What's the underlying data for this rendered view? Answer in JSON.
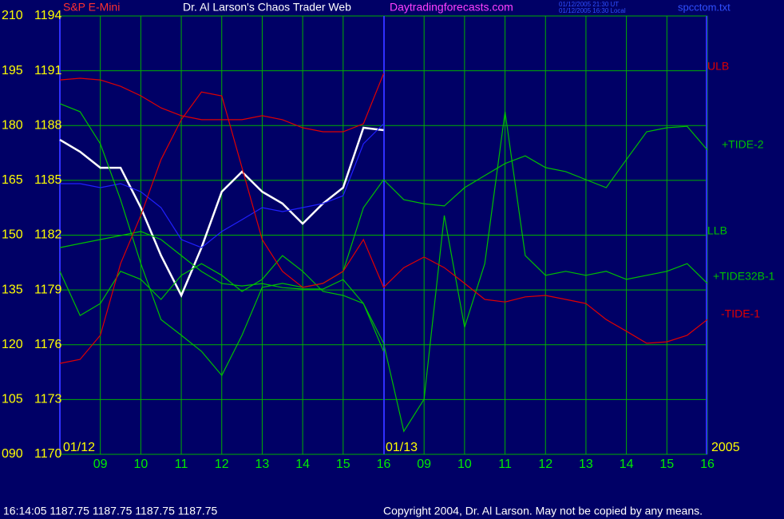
{
  "chart_data": {
    "type": "line",
    "instrument": "S&P E-Mini",
    "title": "Dr. Al Larson's Chaos Trader Web",
    "website": "Daytradingforecasts.com",
    "timestamps": [
      "01/12/2005 21:30 UT",
      "01/12/2005 16:30 Local"
    ],
    "file": "spcctom.txt",
    "dates": [
      "01/12",
      "01/13"
    ],
    "year": "2005",
    "status": "16:14:05  1187.75 1187.75 1187.75 1187.75",
    "copyright": "Copyright 2004, Dr. Al Larson. May not be copied by any means.",
    "grid": true,
    "grid_color": "#00b000",
    "x": [
      8,
      8.5,
      9,
      9.5,
      10,
      10.5,
      11,
      11.5,
      12,
      12.5,
      13,
      13.5,
      14,
      14.5,
      15,
      15.5,
      16,
      16.5,
      17,
      17.5,
      18,
      18.5,
      19,
      19.5,
      20,
      20.5,
      21,
      21.5,
      22,
      22.5,
      23,
      23.5,
      24
    ],
    "xlim": [
      8,
      24
    ],
    "xticks": [
      {
        "value": 9,
        "label": "09"
      },
      10,
      11,
      12,
      13,
      14,
      15,
      16,
      {
        "value": 17,
        "label": "09"
      },
      {
        "value": 18,
        "label": "10"
      },
      {
        "value": 19,
        "label": "11"
      },
      {
        "value": 20,
        "label": "12"
      },
      {
        "value": 21,
        "label": "13"
      },
      {
        "value": 22,
        "label": "14"
      },
      {
        "value": 23,
        "label": "15"
      },
      {
        "value": 24,
        "label": "16"
      }
    ],
    "ylim": [
      1170,
      1194
    ],
    "yticks": [
      1170,
      1173,
      1176,
      1179,
      1182,
      1185,
      1188,
      1191,
      1194
    ],
    "y2lim": [
      90,
      210
    ],
    "y2ticks": [
      {
        "value": 90,
        "label": "090"
      },
      105,
      120,
      135,
      150,
      165,
      180,
      195,
      210
    ],
    "series": [
      {
        "color": "#ffffff",
        "values": [
          1187.22,
          1186.57,
          1185.69,
          1185.69,
          1183.51,
          1180.88,
          1178.7,
          1181.32,
          1184.38,
          1185.47,
          1184.38,
          1183.73,
          1182.63,
          1183.73,
          1184.6,
          1187.88,
          1187.75,
          null,
          null,
          null,
          null,
          null,
          null,
          null,
          null,
          null,
          null,
          null,
          null,
          null,
          null,
          null,
          null
        ]
      },
      {
        "color": "#2020ff",
        "values": [
          1184.82,
          1184.82,
          1184.6,
          1184.82,
          1184.38,
          1183.51,
          1181.76,
          1181.32,
          1182.2,
          1182.85,
          1183.51,
          1183.29,
          1183.51,
          1183.73,
          1184.16,
          1187.0,
          1188.1,
          null,
          null,
          null,
          null,
          null,
          null,
          null,
          null,
          null,
          null,
          null,
          null,
          null,
          null,
          null,
          null
        ]
      },
      {
        "name": "ULB",
        "color": "#e00000",
        "values": [
          1190.5,
          1190.59,
          1190.5,
          1190.15,
          1189.63,
          1188.97,
          1188.54,
          1188.32,
          1188.32,
          1188.32,
          1188.54,
          1188.32,
          1187.88,
          1187.66,
          1187.66,
          1188.1,
          1190.85,
          null,
          null,
          null,
          null,
          null,
          null,
          null,
          null,
          null,
          null,
          null,
          null,
          null,
          null,
          null,
          null
        ]
      },
      {
        "name": "+TIDE-2",
        "axis": "y2",
        "color": "#00c000",
        "values": [
          186.0,
          183.8,
          175.0,
          159.7,
          142.2,
          126.9,
          122.6,
          118.2,
          111.6,
          122.6,
          135.7,
          136.8,
          135.7,
          136.8,
          140.1,
          157.5,
          165.2,
          159.7,
          158.6,
          158.0,
          163.0,
          166.3,
          169.6,
          171.7,
          168.5,
          167.4,
          165.2,
          163.0,
          170.7,
          178.3,
          179.4,
          179.8,
          173.3
        ]
      },
      {
        "name": "LLB",
        "color": "#00c000",
        "values": [
          1181.32,
          1181.54,
          1181.76,
          1181.98,
          1182.2,
          1181.76,
          1180.88,
          1180.01,
          1179.35,
          1179.22,
          1179.35,
          1179.13,
          1179.05,
          1179.05,
          1179.57,
          1178.26,
          1175.64,
          null,
          null,
          null,
          null,
          null,
          null,
          null,
          null,
          null,
          null,
          null,
          null,
          null,
          null,
          null,
          null
        ]
      },
      {
        "name": "+TIDE32B-1",
        "axis": "y2",
        "color": "#00c000",
        "values": [
          140.1,
          128.0,
          131.3,
          140.1,
          137.9,
          132.4,
          139.0,
          142.2,
          139.0,
          134.6,
          137.9,
          144.4,
          140.1,
          134.6,
          133.5,
          131.3,
          120.4,
          96.3,
          105.1,
          155.4,
          124.8,
          142.2,
          183.8,
          144.4,
          139.0,
          140.1,
          139.0,
          140.1,
          137.9,
          139.0,
          140.1,
          142.2,
          136.8
        ]
      },
      {
        "name": "-TIDE-1",
        "axis": "y2",
        "color": "#e00000",
        "values": [
          114.9,
          116.0,
          122.6,
          142.2,
          155.4,
          170.7,
          181.6,
          189.2,
          188.1,
          168.5,
          148.8,
          140.1,
          135.7,
          136.8,
          140.1,
          148.8,
          135.7,
          141.1,
          144.0,
          141.1,
          136.8,
          132.4,
          131.7,
          133.1,
          133.5,
          132.4,
          131.3,
          126.9,
          123.7,
          120.4,
          120.8,
          122.6,
          126.9
        ]
      }
    ]
  }
}
